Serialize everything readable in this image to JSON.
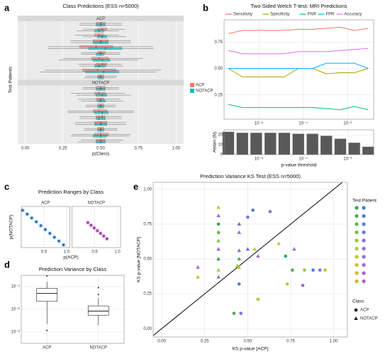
{
  "panel_labels": [
    "a",
    "b",
    "c",
    "d",
    "e"
  ],
  "chart_data": [
    {
      "type": "box",
      "orientation": "horizontal",
      "title": "Class Predictions (ESS n=5000)",
      "xlabel": "p(Class)",
      "ylabel": "Test Patients",
      "facets": [
        "ACP",
        "NOTACP"
      ],
      "xlim": [
        -0.05,
        1.05
      ],
      "xticks": [
        {
          "value": 0,
          "label": "0.00"
        },
        0.25,
        {
          "value": 0.5,
          "label": "0.50"
        },
        0.75,
        {
          "value": 1,
          "label": "1.00"
        }
      ],
      "grid": true,
      "legend": "right",
      "series": [
        {
          "name": "ACP",
          "color": "#f8766d",
          "boxes": [
            [
              [
                0.36,
                0.47,
                0.5,
                0.53,
                0.64
              ],
              [
                0.38,
                0.48,
                0.51,
                0.54,
                0.66
              ],
              [
                0.33,
                0.46,
                0.49,
                0.52,
                0.62
              ],
              [
                0.3,
                0.45,
                0.5,
                0.55,
                0.7
              ],
              [
                0.15,
                0.36,
                0.47,
                0.58,
                0.85
              ],
              [
                0.37,
                0.48,
                0.5,
                0.53,
                0.63
              ],
              [
                0.25,
                0.44,
                0.49,
                0.55,
                0.78
              ],
              [
                0.35,
                0.47,
                0.51,
                0.54,
                0.64
              ],
              [
                0.13,
                0.38,
                0.48,
                0.6,
                0.9
              ],
              [
                0.4,
                0.48,
                0.5,
                0.52,
                0.61
              ]
            ],
            [
              [
                0.38,
                0.47,
                0.5,
                0.53,
                0.62
              ],
              [
                0.3,
                0.46,
                0.49,
                0.53,
                0.66
              ],
              [
                0.35,
                0.47,
                0.5,
                0.52,
                0.63
              ],
              [
                0.4,
                0.48,
                0.5,
                0.52,
                0.6
              ],
              [
                0.28,
                0.45,
                0.49,
                0.54,
                0.72
              ],
              [
                0.36,
                0.47,
                0.51,
                0.53,
                0.64
              ],
              [
                0.33,
                0.46,
                0.5,
                0.54,
                0.67
              ],
              [
                0.39,
                0.48,
                0.5,
                0.52,
                0.61
              ],
              [
                0.31,
                0.46,
                0.5,
                0.55,
                0.7
              ],
              [
                0.37,
                0.47,
                0.5,
                0.53,
                0.65
              ]
            ]
          ]
        },
        {
          "name": "NOTACP",
          "color": "#00bfc4",
          "boxes": [
            [
              [
                0.36,
                0.47,
                0.5,
                0.53,
                0.64
              ],
              [
                0.34,
                0.46,
                0.49,
                0.52,
                0.62
              ],
              [
                0.38,
                0.48,
                0.51,
                0.54,
                0.67
              ],
              [
                0.3,
                0.45,
                0.5,
                0.55,
                0.7
              ],
              [
                0.15,
                0.42,
                0.53,
                0.64,
                0.85
              ],
              [
                0.37,
                0.47,
                0.5,
                0.52,
                0.63
              ],
              [
                0.22,
                0.45,
                0.51,
                0.56,
                0.75
              ],
              [
                0.36,
                0.46,
                0.49,
                0.53,
                0.65
              ],
              [
                0.1,
                0.4,
                0.52,
                0.62,
                0.87
              ],
              [
                0.39,
                0.48,
                0.5,
                0.52,
                0.6
              ]
            ],
            [
              [
                0.38,
                0.47,
                0.5,
                0.53,
                0.62
              ],
              [
                0.34,
                0.47,
                0.51,
                0.54,
                0.7
              ],
              [
                0.37,
                0.48,
                0.5,
                0.53,
                0.65
              ],
              [
                0.4,
                0.48,
                0.5,
                0.52,
                0.6
              ],
              [
                0.28,
                0.46,
                0.51,
                0.55,
                0.72
              ],
              [
                0.36,
                0.47,
                0.49,
                0.53,
                0.64
              ],
              [
                0.33,
                0.46,
                0.5,
                0.54,
                0.67
              ],
              [
                0.39,
                0.48,
                0.5,
                0.52,
                0.61
              ],
              [
                0.3,
                0.45,
                0.5,
                0.54,
                0.69
              ],
              [
                0.35,
                0.47,
                0.5,
                0.53,
                0.63
              ]
            ]
          ]
        }
      ]
    },
    {
      "type": "line",
      "title": "Two-Sided Welch T-test: MRI Predictions",
      "legend": "top",
      "xlog": true,
      "x": [
        4.2e-08,
        1.8e-07,
        7.6e-07,
        3.3e-06,
        1.4e-05,
        6e-05,
        0.00026,
        0.0011,
        0.0047,
        0.02,
        0.085
      ],
      "xlim": [
        2.7e-08,
        0.15
      ],
      "xticks": [
        {
          "value": 1e-06,
          "label": "10⁻⁶"
        },
        {
          "value": 0.0001,
          "label": "10⁻⁴"
        },
        {
          "value": 0.01,
          "label": "10⁻²"
        }
      ],
      "ylim": [
        0.02,
        0.96
      ],
      "yticks": [
        0.25,
        {
          "value": 0.5,
          "label": "0.50"
        },
        0.75
      ],
      "grid": true,
      "series": [
        {
          "name": "Sensitivity",
          "color": "#f8766d",
          "values": [
            0.83,
            0.86,
            0.86,
            0.86,
            0.86,
            0.87,
            0.87,
            0.88,
            0.89,
            0.86,
            0.88
          ]
        },
        {
          "name": "Specificity",
          "color": "#a3a500",
          "values": [
            0.5,
            0.42,
            0.42,
            0.42,
            0.42,
            0.5,
            0.5,
            0.45,
            0.46,
            0.46,
            0.5
          ]
        },
        {
          "name": "FNR",
          "color": "#00bf7d",
          "values": [
            0.16,
            0.13,
            0.13,
            0.13,
            0.13,
            0.13,
            0.13,
            0.12,
            0.11,
            0.14,
            0.11
          ]
        },
        {
          "name": "FPR",
          "color": "#00b0f6",
          "values": [
            0.5,
            0.5,
            0.5,
            0.5,
            0.5,
            0.5,
            0.5,
            0.55,
            0.55,
            0.55,
            0.5
          ]
        },
        {
          "name": "Accuracy",
          "color": "#e76bf3",
          "values": [
            0.67,
            0.64,
            0.64,
            0.64,
            0.64,
            0.66,
            0.66,
            0.66,
            0.67,
            0.68,
            0.69
          ]
        }
      ]
    },
    {
      "type": "bar",
      "ylabel": "Atstan (N)",
      "xlabel": "p-value threshold",
      "xlog": true,
      "x": [
        4.2e-08,
        1.8e-07,
        7.6e-07,
        3.3e-06,
        1.4e-05,
        6e-05,
        0.00026,
        0.0011,
        0.0047,
        0.02,
        0.085
      ],
      "values": [
        23,
        22,
        22,
        22,
        22,
        21,
        21,
        19,
        16,
        12,
        8
      ],
      "color": "#595959",
      "xlim": [
        2.7e-08,
        0.15
      ],
      "xticks": [
        {
          "value": 1e-06,
          "label": "10⁻⁶"
        },
        {
          "value": 0.0001,
          "label": "10⁻⁴"
        },
        {
          "value": 0.01,
          "label": "10⁻²"
        }
      ],
      "ylim": [
        0,
        25
      ],
      "yticks": [
        0,
        10,
        20
      ],
      "grid": true
    },
    {
      "type": "scatter",
      "title": "Prediction Ranges by Class",
      "xlabel": "p(ACP)",
      "ylabel": "p(NOTACP)",
      "facets": [
        "ACP",
        "NOTACP"
      ],
      "xlim": [
        0,
        1.07
      ],
      "xticks": [
        0.5,
        {
          "value": 1,
          "label": "1.0"
        }
      ],
      "ylim": [
        0,
        1.07
      ],
      "grid": true,
      "series": [
        {
          "facet": 0,
          "color": "#4b52b8",
          "halo": "#66e8e8",
          "x": [
            0.03,
            0.13,
            0.23,
            0.33,
            0.43,
            0.53,
            0.63,
            0.73,
            0.83,
            0.93
          ],
          "y": [
            0.97,
            0.87,
            0.77,
            0.67,
            0.57,
            0.47,
            0.37,
            0.27,
            0.17,
            0.07
          ]
        },
        {
          "facet": 1,
          "color": "#8a3f9e",
          "halo": "#f5a0e0",
          "x": [
            0.35,
            0.42,
            0.49,
            0.56,
            0.63,
            0.7,
            0.77
          ],
          "y": [
            0.65,
            0.58,
            0.51,
            0.44,
            0.37,
            0.3,
            0.23
          ]
        }
      ]
    },
    {
      "type": "box",
      "orientation": "vertical",
      "title": "Prediction Variance by Class",
      "categories": [
        "ACP",
        "NOTACP"
      ],
      "ylog": true,
      "ylim": [
        1e-09,
        0.001
      ],
      "yticks": [
        {
          "value": 1e-08,
          "label": "10⁻⁸"
        },
        {
          "value": 1e-06,
          "label": "10⁻⁶"
        },
        {
          "value": 0.0001,
          "label": "10⁻⁴"
        }
      ],
      "grid": true,
      "boxes": [
        [
          5e-08,
          5e-06,
          2.5e-05,
          7e-05,
          0.00027
        ],
        [
          4e-08,
          3e-07,
          7e-07,
          2e-06,
          1e-05
        ]
      ],
      "outliers": [
        [
          0.00087,
          1.4e-08
        ],
        [
          8e-05,
          2e-05
        ]
      ]
    },
    {
      "type": "scatter",
      "title": "Prediction Variance KS Test (ESS n=5000)",
      "xlabel": "KS p-value [ACP]",
      "ylabel": "KS p-value [NOTACP]",
      "xlim": [
        -0.05,
        1.08
      ],
      "ylim": [
        -0.06,
        1.05
      ],
      "xticks": [
        {
          "value": 0,
          "label": "0.00"
        },
        0.25,
        {
          "value": 0.5,
          "label": "0.50"
        },
        0.75,
        {
          "value": 1,
          "label": "1.00"
        }
      ],
      "yticks": [
        {
          "value": 0,
          "label": "0.00"
        },
        0.25,
        {
          "value": 0.5,
          "label": "0.50"
        },
        0.75,
        {
          "value": 1,
          "label": "1.00"
        }
      ],
      "grid": true,
      "diagonal": true,
      "legend": {
        "title": "Test Patient",
        "class_title": "Class",
        "colors": [
          "#2fa84f",
          "#49b04a",
          "#63b845",
          "#7dbf40",
          "#97c63b",
          "#acc936",
          "#b9c932",
          "#c4c52e",
          "#cbbf2a",
          "#d0b826",
          "#4e79d8",
          "#5a78dc",
          "#6677de",
          "#7276df",
          "#7e73de",
          "#8a6fdb",
          "#956bd6",
          "#a067d0",
          "#a963c9",
          "#b05fc0"
        ]
      },
      "series": [
        {
          "name": "ACP",
          "shape": "circle",
          "x": [
            0.33,
            0.33,
            0.5,
            0.53,
            0.63,
            0.72,
            0.76,
            0.83,
            0.88,
            0.92,
            0.95,
            0.73,
            0.56,
            0.45,
            0.42,
            0.46,
            0.82
          ],
          "y": [
            0.75,
            0.69,
            0.8,
            0.85,
            0.84,
            0.52,
            0.42,
            0.42,
            0.42,
            0.42,
            0.42,
            0.32,
            0.21,
            0.32,
            0.11,
            0.11,
            0.31
          ],
          "colors": [
            "#2fa84f",
            "#63b845",
            "#7276df",
            "#4e79d8",
            "#8a6fdb",
            "#2fa84f",
            "#49b04a",
            "#97c63b",
            "#4e79d8",
            "#7276df",
            "#cbbf2a",
            "#c4c52e",
            "#acc936",
            "#5a78dc",
            "#49b04a",
            "#6677de",
            "#a067d0"
          ]
        },
        {
          "name": "NOTACP",
          "shape": "triangle",
          "x": [
            0.33,
            0.33,
            0.33,
            0.33,
            0.33,
            0.33,
            0.33,
            0.21,
            0.21,
            0.45,
            0.45,
            0.45,
            0.45,
            0.45,
            0.5,
            0.54,
            0.56,
            0.68,
            0.77,
            0.44
          ],
          "y": [
            0.87,
            0.81,
            0.63,
            0.57,
            0.5,
            0.42,
            0.37,
            0.44,
            0.37,
            0.75,
            0.69,
            0.56,
            0.5,
            0.44,
            0.57,
            0.57,
            0.52,
            0.61,
            0.57,
            0.45
          ],
          "colors": [
            "#cbbf2a",
            "#a963c9",
            "#7dbf40",
            "#b05fc0",
            "#2fa84f",
            "#acc936",
            "#956bd6",
            "#a067d0",
            "#d0b826",
            "#5a78dc",
            "#8a6fdb",
            "#7e73de",
            "#49b04a",
            "#d0b826",
            "#6677de",
            "#b9c932",
            "#956bd6",
            "#c4c52e",
            "#a963c9",
            "#97c63b"
          ]
        }
      ]
    }
  ]
}
